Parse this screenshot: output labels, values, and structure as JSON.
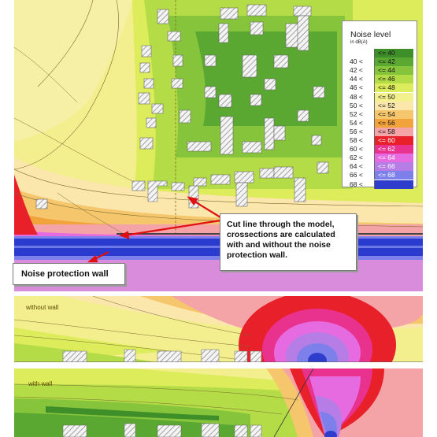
{
  "legend": {
    "title": "Noise level",
    "unit": "in dB(A)",
    "classes": [
      {
        "lower": "",
        "upper": "<= 40",
        "color": "#3e8e2a"
      },
      {
        "lower": "40 <",
        "upper": "<= 42",
        "color": "#5aa832"
      },
      {
        "lower": "42 <",
        "upper": "<= 44",
        "color": "#86c43c"
      },
      {
        "lower": "44 <",
        "upper": "<= 46",
        "color": "#b3dc46"
      },
      {
        "lower": "46 <",
        "upper": "<= 48",
        "color": "#dcec5a"
      },
      {
        "lower": "48 <",
        "upper": "<= 50",
        "color": "#f3f18e"
      },
      {
        "lower": "50 <",
        "upper": "<= 52",
        "color": "#fbe6ac"
      },
      {
        "lower": "52 <",
        "upper": "<= 54",
        "color": "#f6c66c"
      },
      {
        "lower": "54 <",
        "upper": "<= 56",
        "color": "#f2a33c"
      },
      {
        "lower": "56 <",
        "upper": "<= 58",
        "color": "#f4a3a6"
      },
      {
        "lower": "58 <",
        "upper": "<= 60",
        "color": "#e8202a"
      },
      {
        "lower": "60 <",
        "upper": "<= 62",
        "color": "#e9318e"
      },
      {
        "lower": "62 <",
        "upper": "<= 64",
        "color": "#e66be0"
      },
      {
        "lower": "64 <",
        "upper": "<= 66",
        "color": "#b67de6"
      },
      {
        "lower": "66 <",
        "upper": "<= 68",
        "color": "#7d80ea"
      },
      {
        "lower": "68 <",
        "upper": "",
        "color": "#2f3dcc"
      }
    ]
  },
  "callouts": {
    "cut_line": "Cut line through the model, crossections are calculated with and without the noise protection wall.",
    "noise_wall": "Noise protection wall"
  },
  "sections": {
    "without_wall": "without wall",
    "with_wall": "with wall"
  },
  "colors": {
    "road": "#2a3bd0",
    "building_hatch": "#8d8d8d",
    "arrow": "#e01010"
  },
  "icons": {
    "arrow": "red-arrow-icon",
    "building": "hatched-building-icon"
  }
}
